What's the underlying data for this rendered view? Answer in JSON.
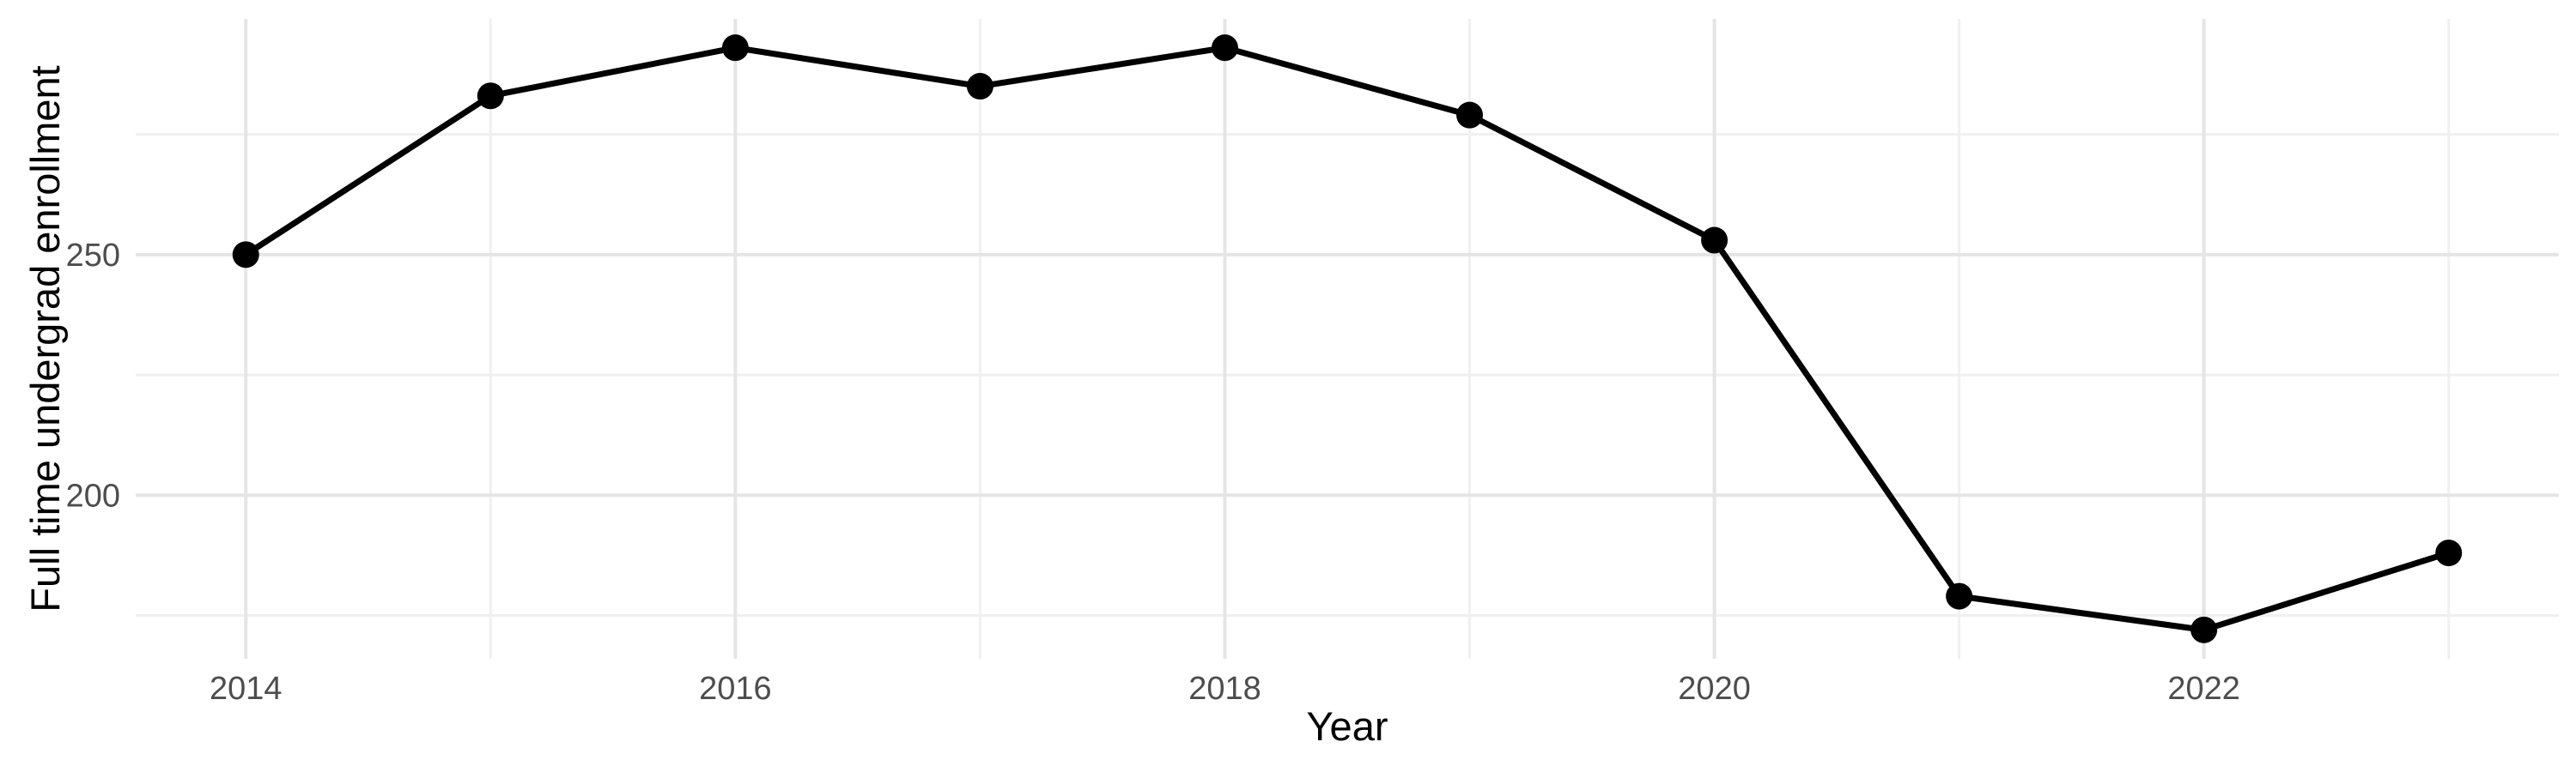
{
  "figure": {
    "background_color": "#FFFFFF",
    "description": "Line chart of full time undergraduate enrollment by year"
  },
  "chart_data": {
    "type": "line",
    "title": "",
    "xlabel": "Year",
    "ylabel": "Full time undergrad enrollment",
    "x": [
      2014,
      2015,
      2016,
      2017,
      2018,
      2019,
      2020,
      2021,
      2022,
      2023
    ],
    "values": [
      250,
      283,
      293,
      285,
      293,
      279,
      253,
      179,
      172,
      188
    ],
    "series_name": "Full time undergrad enrollment",
    "xlim": [
      2013.55,
      2023.45
    ],
    "ylim": [
      166,
      299
    ],
    "x_major_ticks": [
      2014,
      2016,
      2018,
      2020,
      2022
    ],
    "x_major_tick_labels": [
      "2014",
      "2016",
      "2018",
      "2020",
      "2022"
    ],
    "x_minor_ticks": [
      2015,
      2017,
      2019,
      2021,
      2023
    ],
    "y_major_ticks": [
      200,
      250
    ],
    "y_major_tick_labels": [
      "200",
      "250"
    ],
    "y_minor_ticks": [
      175,
      225,
      275
    ],
    "grid": true,
    "legend_position": "none",
    "line_color": "#000000",
    "point_color": "#000000",
    "grid_major_color": "#E5E5E5",
    "grid_minor_color": "#F0F0F0",
    "tick_label_color": "#4D4D4D",
    "axis_title_color": "#000000"
  }
}
